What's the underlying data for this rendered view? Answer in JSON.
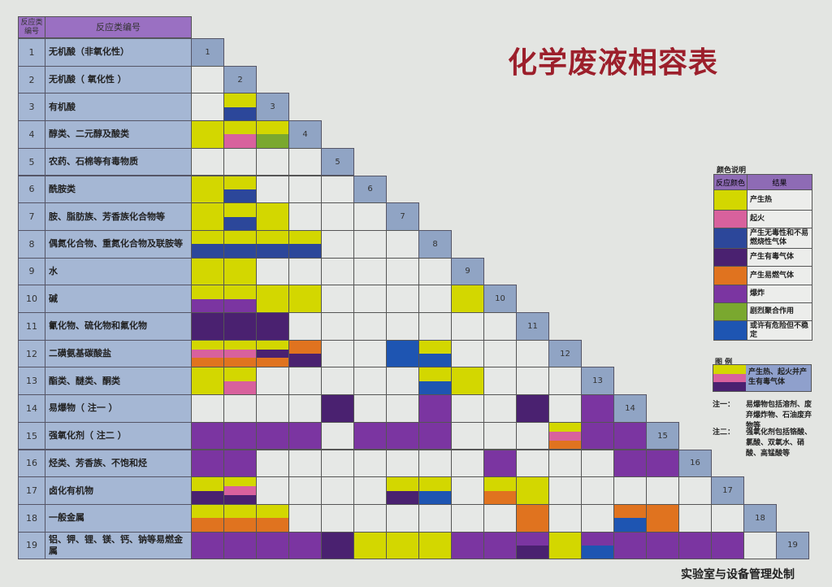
{
  "title": "化学废液相容表",
  "footer": "实验室与设备管理处制",
  "table_header": {
    "number": "反应类编号",
    "name": "反应类编号"
  },
  "categories": [
    {
      "no": "1",
      "name": "无机酸（非氧化性）"
    },
    {
      "no": "2",
      "name": "无机酸（ 氧化性 ）"
    },
    {
      "no": "3",
      "name": "有机酸"
    },
    {
      "no": "4",
      "name": "醇类、二元醇及酸类"
    },
    {
      "no": "5",
      "name": "农药、石棉等有毒物质"
    },
    {
      "no": "6",
      "name": "酰胺类"
    },
    {
      "no": "7",
      "name": "胺、脂肪族、芳香族化合物等"
    },
    {
      "no": "8",
      "name": "偶氮化合物、重氮化合物及联胺等"
    },
    {
      "no": "9",
      "name": "水"
    },
    {
      "no": "10",
      "name": "碱"
    },
    {
      "no": "11",
      "name": "氰化物、硫化物和氟化物"
    },
    {
      "no": "12",
      "name": "二磺氨基碳酸盐"
    },
    {
      "no": "13",
      "name": "酯类、醚类、酮类"
    },
    {
      "no": "14",
      "name": "易爆物（ 注一 ）"
    },
    {
      "no": "15",
      "name": "强氧化剂（ 注二 ）"
    },
    {
      "no": "16",
      "name": "烃类、芳香族、不饱和烃"
    },
    {
      "no": "17",
      "name": "卤化有机物"
    },
    {
      "no": "18",
      "name": "一般金属"
    },
    {
      "no": "19",
      "name": "铝、钾、锂、镁、钙、钠等易燃金属"
    }
  ],
  "colors": {
    "Y": "#d3d700",
    "P": "#d8619d",
    "B": "#2c479a",
    "T": "#4a2170",
    "O": "#e0731f",
    "X": "#7b35a1",
    "G": "#7aa82f",
    "U": "#1e55b2"
  },
  "legend": {
    "title": "颜色说明",
    "header_color": "反应颜色",
    "header_result": "结果",
    "items": [
      {
        "code": "Y",
        "label": "产生热"
      },
      {
        "code": "P",
        "label": "起火"
      },
      {
        "code": "B",
        "label": "产生无毒性和不易燃烧性气体"
      },
      {
        "code": "T",
        "label": "产生有毒气体"
      },
      {
        "code": "O",
        "label": "产生易燃气体"
      },
      {
        "code": "X",
        "label": "爆炸"
      },
      {
        "code": "G",
        "label": "剧烈聚合作用"
      },
      {
        "code": "U",
        "label": "或许有危险但不稳定"
      }
    ]
  },
  "example": {
    "title": "图 例",
    "codes": [
      "Y",
      "P",
      "T"
    ],
    "label": "产生热、起火并产生有毒气体"
  },
  "notes": [
    {
      "label": "注一：",
      "text": "易爆物包括溶剂、废弃爆炸物、石油废弃物等"
    },
    {
      "label": "注二：",
      "text": "强氧化剂包括铬酸、氯酸、双氧水、硝酸、高锰酸等"
    }
  ],
  "matrix": [
    [],
    [
      ""
    ],
    [
      "",
      "YB"
    ],
    [
      "Y",
      "YP",
      "YG"
    ],
    [
      "",
      "",
      "",
      ""
    ],
    [
      "Y",
      "YB",
      "",
      "",
      ""
    ],
    [
      "Y",
      "YB",
      "Y",
      "",
      "",
      ""
    ],
    [
      "YB",
      "YB",
      "YB",
      "YB",
      "",
      "",
      ""
    ],
    [
      "Y",
      "Y",
      "",
      "",
      "",
      "",
      "",
      ""
    ],
    [
      "YX",
      "YX",
      "Y",
      "Y",
      "",
      "",
      "",
      "",
      "Y"
    ],
    [
      "T",
      "T",
      "T",
      "",
      "",
      "",
      "",
      "",
      "",
      ""
    ],
    [
      "YPO",
      "YPO",
      "YTO",
      "OT",
      "",
      "",
      "U",
      "YU",
      "",
      "",
      ""
    ],
    [
      "Y",
      "YP",
      "",
      "",
      "",
      "",
      "",
      "YU",
      "Y",
      "",
      "",
      ""
    ],
    [
      "",
      "",
      "",
      "",
      "T",
      "",
      "",
      "X",
      "",
      "",
      "T",
      "",
      "X"
    ],
    [
      "X",
      "X",
      "X",
      "X",
      "",
      "X",
      "X",
      "X",
      "",
      "",
      "",
      "YPO",
      "X",
      "X"
    ],
    [
      "X",
      "X",
      "",
      "",
      "",
      "",
      "",
      "",
      "",
      "X",
      "",
      "",
      "",
      "X",
      "X"
    ],
    [
      "YT",
      "YPT",
      "",
      "",
      "",
      "",
      "YT",
      "YU",
      "",
      "YO",
      "Y",
      "",
      "",
      "",
      "",
      ""
    ],
    [
      "YO",
      "YO",
      "YO",
      "",
      "",
      "",
      "",
      "",
      "",
      "",
      "O",
      "",
      "",
      "OU",
      "O",
      "",
      ""
    ],
    [
      "X",
      "X",
      "X",
      "X",
      "T",
      "Y",
      "Y",
      "Y",
      "X",
      "X",
      "XT",
      "Y",
      "XU",
      "X",
      "X",
      "X",
      "X",
      ""
    ]
  ]
}
